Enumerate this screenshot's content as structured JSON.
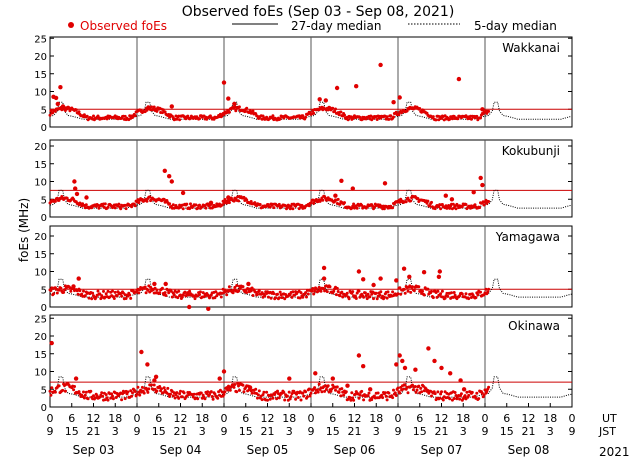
{
  "chart_data": {
    "type": "scatter",
    "title": "Observed foEs (Sep 03 - Sep 08, 2021)",
    "ylabel": "foEs (MHz)",
    "ylim": [
      0,
      25
    ],
    "yticks": [
      0,
      5,
      10,
      15,
      20,
      25
    ],
    "x_range_days": [
      0,
      6
    ],
    "x_tick_hours_ut": [
      "0",
      "6",
      "12",
      "18",
      "0",
      "6",
      "12",
      "18",
      "0",
      "6",
      "12",
      "18",
      "0",
      "6",
      "12",
      "18",
      "0",
      "6",
      "12",
      "18",
      "0",
      "6",
      "12",
      "18",
      "0"
    ],
    "x_tick_hours_jst": [
      "9",
      "15",
      "21",
      "3",
      "9",
      "15",
      "21",
      "3",
      "9",
      "15",
      "21",
      "3",
      "9",
      "15",
      "21",
      "3",
      "9",
      "15",
      "21",
      "3",
      "9",
      "15",
      "21",
      "3",
      "9"
    ],
    "row_labels": [
      "UT",
      "JST"
    ],
    "dates": [
      "Sep 03",
      "Sep 04",
      "Sep 05",
      "Sep 06",
      "Sep 07",
      "Sep 08"
    ],
    "year": "2021",
    "legend": {
      "observed": "Observed foEs",
      "median27": "27-day median",
      "median5": "5-day median",
      "placement": "top"
    },
    "colors": {
      "observed": "#e00000",
      "median27": "#cc0000",
      "median5": "#000000",
      "grid": "#888888"
    },
    "observed_data_through_day": 5.05,
    "stations": [
      {
        "name": "Wakkanai",
        "median27": 5,
        "median5_base": 2.2,
        "median5_amp": 2.8,
        "median5_peak_hour": 3,
        "observed_base": 2.6,
        "observed_amp": 2.6,
        "observed_noise": 0.6,
        "spikes": [
          [
            0.04,
            8.5
          ],
          [
            0.07,
            8.2
          ],
          [
            0.09,
            6.5
          ],
          [
            0.12,
            11.2
          ],
          [
            0.15,
            5.8
          ],
          [
            1.13,
            5.5
          ],
          [
            1.4,
            5.8
          ],
          [
            2.0,
            12.5
          ],
          [
            2.05,
            8.0
          ],
          [
            2.12,
            6.5
          ],
          [
            3.1,
            7.8
          ],
          [
            3.17,
            7.5
          ],
          [
            3.3,
            11.0
          ],
          [
            3.52,
            11.5
          ],
          [
            3.8,
            17.5
          ],
          [
            3.95,
            7.0
          ],
          [
            4.02,
            8.3
          ],
          [
            4.7,
            13.5
          ],
          [
            4.97,
            5.0
          ]
        ]
      },
      {
        "name": "Kokubunji",
        "median27": 7.5,
        "median5_base": 2.5,
        "median5_amp": 3.0,
        "median5_peak_hour": 3,
        "observed_base": 3.0,
        "observed_amp": 2.2,
        "observed_noise": 0.7,
        "spikes": [
          [
            0.28,
            10.0
          ],
          [
            0.29,
            8.0
          ],
          [
            0.31,
            6.5
          ],
          [
            0.42,
            5.5
          ],
          [
            1.32,
            13.0
          ],
          [
            1.37,
            11.5
          ],
          [
            1.4,
            10.0
          ],
          [
            1.53,
            6.8
          ],
          [
            1.85,
            4.0
          ],
          [
            2.05,
            5.5
          ],
          [
            3.28,
            6.0
          ],
          [
            3.35,
            10.2
          ],
          [
            3.48,
            8.0
          ],
          [
            3.85,
            9.5
          ],
          [
            4.55,
            6.0
          ],
          [
            4.62,
            5.0
          ],
          [
            4.95,
            11.0
          ],
          [
            4.97,
            9.0
          ],
          [
            4.87,
            7.0
          ]
        ]
      },
      {
        "name": "Yamagawa",
        "median27": 5,
        "median5_base": 2.8,
        "median5_amp": 3.0,
        "median5_peak_hour": 3,
        "observed_base": 3.4,
        "observed_amp": 1.6,
        "observed_noise": 1.1,
        "spikes": [
          [
            0.33,
            8.0
          ],
          [
            0.27,
            5.8
          ],
          [
            1.2,
            6.5
          ],
          [
            1.33,
            6.5
          ],
          [
            1.6,
            0.0
          ],
          [
            1.82,
            -0.5
          ],
          [
            2.28,
            6.5
          ],
          [
            3.15,
            11.0
          ],
          [
            3.15,
            8.0
          ],
          [
            3.55,
            10.0
          ],
          [
            3.6,
            7.8
          ],
          [
            3.72,
            6.2
          ],
          [
            3.8,
            8.0
          ],
          [
            3.98,
            7.5
          ],
          [
            4.07,
            10.8
          ],
          [
            4.13,
            8.5
          ],
          [
            4.3,
            9.8
          ],
          [
            4.48,
            10.0
          ],
          [
            4.47,
            8.5
          ]
        ]
      },
      {
        "name": "Okinawa",
        "median27": 7,
        "median5_base": 2.8,
        "median5_amp": 3.5,
        "median5_peak_hour": 3,
        "observed_base": 3.2,
        "observed_amp": 2.2,
        "observed_noise": 1.3,
        "spikes": [
          [
            0.02,
            18.0
          ],
          [
            0.3,
            8.0
          ],
          [
            1.05,
            15.5
          ],
          [
            1.12,
            12.0
          ],
          [
            1.22,
            8.5
          ],
          [
            1.2,
            7.5
          ],
          [
            1.95,
            8.0
          ],
          [
            2.0,
            10.0
          ],
          [
            2.3,
            5.5
          ],
          [
            2.75,
            8.0
          ],
          [
            3.05,
            9.5
          ],
          [
            3.25,
            8.0
          ],
          [
            3.42,
            6.0
          ],
          [
            3.55,
            14.5
          ],
          [
            3.6,
            11.5
          ],
          [
            3.68,
            5.0
          ],
          [
            3.98,
            12.0
          ],
          [
            4.02,
            14.5
          ],
          [
            4.05,
            13.0
          ],
          [
            4.08,
            11.0
          ],
          [
            4.2,
            10.5
          ],
          [
            4.35,
            16.5
          ],
          [
            4.42,
            13.0
          ],
          [
            4.5,
            11.0
          ],
          [
            4.6,
            9.5
          ],
          [
            4.72,
            7.5
          ],
          [
            4.76,
            5.0
          ]
        ]
      }
    ]
  }
}
